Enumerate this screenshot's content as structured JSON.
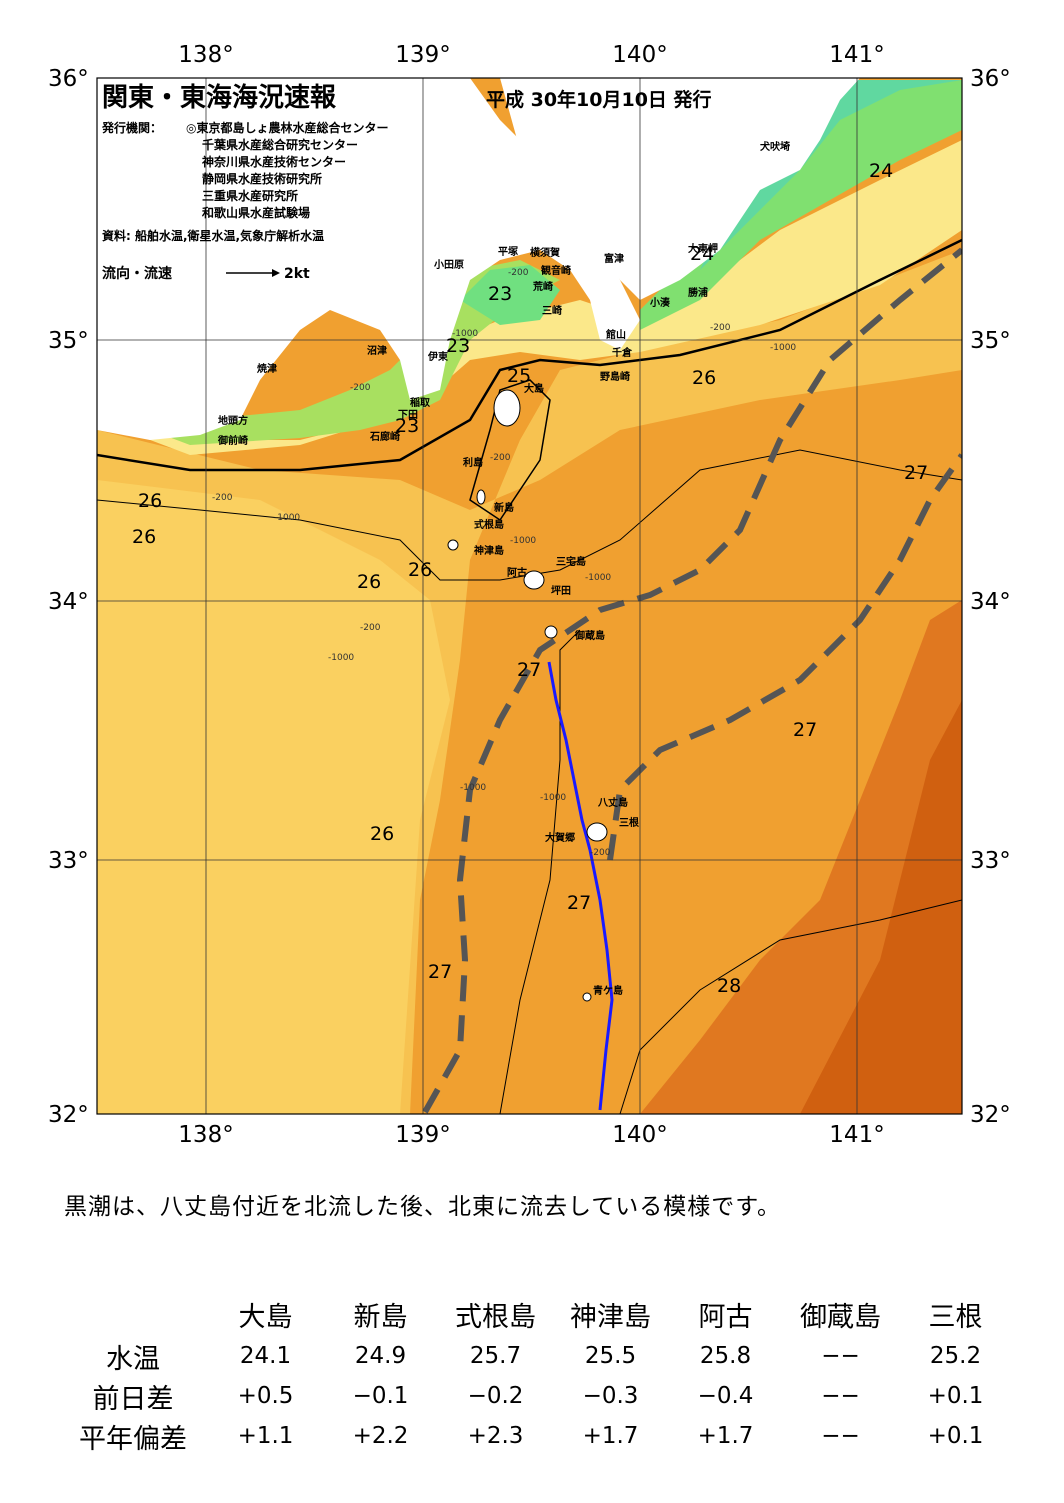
{
  "header": {
    "title": "関東・東海海況速報",
    "issued": "平成 30年10月10日 発行",
    "issuers_label": "発行機関：",
    "issuers": [
      "◎東京都島しょ農林水産総合センター",
      "千葉県水産総合研究センター",
      "神奈川県水産技術センター",
      "静岡県水産技術研究所",
      "三重県水産研究所",
      "和歌山県水産試験場"
    ],
    "source": "資料: 船舶水温,衛星水温,気象庁解析水温",
    "legend_label": "流向・流速",
    "legend_scale": "2kt"
  },
  "axes": {
    "lon": [
      "138°",
      "139°",
      "140°",
      "141°"
    ],
    "lat": [
      "36°",
      "35°",
      "34°",
      "33°",
      "32°"
    ]
  },
  "place_names": [
    {
      "name": "犬吠埼"
    },
    {
      "name": "富津"
    },
    {
      "name": "小湊"
    },
    {
      "name": "勝浦"
    },
    {
      "name": "大東岬"
    },
    {
      "name": "小田原"
    },
    {
      "name": "平塚"
    },
    {
      "name": "横須賀"
    },
    {
      "name": "観音崎"
    },
    {
      "name": "荒崎"
    },
    {
      "name": "三崎"
    },
    {
      "name": "館山"
    },
    {
      "name": "千倉"
    },
    {
      "name": "野島崎"
    },
    {
      "name": "沼津"
    },
    {
      "name": "伊東"
    },
    {
      "name": "焼津"
    },
    {
      "name": "稲取"
    },
    {
      "name": "下田"
    },
    {
      "name": "石廊崎"
    },
    {
      "name": "地頭方"
    },
    {
      "name": "御前崎"
    },
    {
      "name": "大島"
    },
    {
      "name": "利島"
    },
    {
      "name": "新島"
    },
    {
      "name": "式根島"
    },
    {
      "name": "神津島"
    },
    {
      "name": "三宅島"
    },
    {
      "name": "阿古"
    },
    {
      "name": "坪田"
    },
    {
      "name": "御蔵島"
    },
    {
      "name": "八丈島"
    },
    {
      "name": "三根"
    },
    {
      "name": "大賀郷"
    },
    {
      "name": "青ケ島"
    }
  ],
  "isotherm_labels": [
    "24",
    "23",
    "24",
    "23",
    "25",
    "26",
    "23",
    "26",
    "26",
    "26",
    "27",
    "26",
    "27",
    "27",
    "27",
    "26",
    "28",
    "27"
  ],
  "depth_labels": [
    "-200",
    "-200",
    "-200",
    "-1000",
    "-200",
    "-1000",
    "-200",
    "-1000",
    "-1000",
    "-1000",
    "-200",
    "-1000",
    "-1000",
    "-1000",
    "-200"
  ],
  "summary": "黒潮は、八丈島付近を北流した後、北東に流去している模様です。",
  "table": {
    "stations": [
      "大島",
      "新島",
      "式根島",
      "神津島",
      "阿古",
      "御蔵島",
      "三根"
    ],
    "rows": [
      {
        "label": "水温",
        "values": [
          "24.1",
          "24.9",
          "25.7",
          "25.5",
          "25.8",
          "−−",
          "25.2"
        ]
      },
      {
        "label": "前日差",
        "values": [
          "+0.5",
          "−0.1",
          "−0.2",
          "−0.3",
          "−0.4",
          "−−",
          "+0.1"
        ]
      },
      {
        "label": "平年偏差",
        "values": [
          "+1.1",
          "+2.2",
          "+2.3",
          "+1.7",
          "+1.7",
          "−−",
          "+0.1"
        ]
      }
    ]
  }
}
